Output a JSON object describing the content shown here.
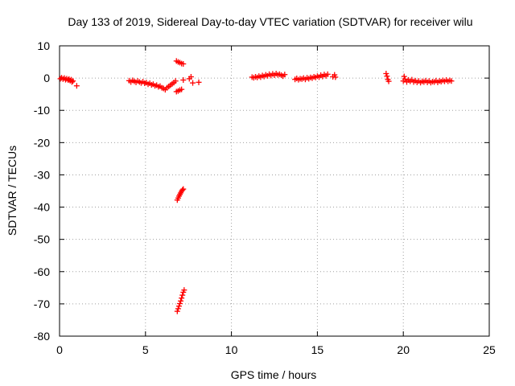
{
  "chart_data": {
    "type": "scatter",
    "title": "Day 133 of 2019, Sidereal Day-to-day VTEC variation (SDTVAR) for receiver wilu",
    "xlabel": "GPS time / hours",
    "ylabel": "SDTVAR / TECUs",
    "xlim": [
      0,
      25
    ],
    "ylim": [
      -80,
      10
    ],
    "xticks": [
      0,
      5,
      10,
      15,
      20,
      25
    ],
    "yticks": [
      10,
      0,
      -10,
      -20,
      -30,
      -40,
      -50,
      -60,
      -70,
      -80
    ],
    "grid": true,
    "marker": "+",
    "color": "#ff0000",
    "series": [
      {
        "name": "SDTVAR",
        "points": [
          [
            0.05,
            -0.2
          ],
          [
            0.12,
            0.1
          ],
          [
            0.2,
            -0.3
          ],
          [
            0.28,
            0.0
          ],
          [
            0.35,
            -0.5
          ],
          [
            0.42,
            -0.2
          ],
          [
            0.5,
            -0.6
          ],
          [
            0.55,
            -0.3
          ],
          [
            0.62,
            -0.8
          ],
          [
            0.68,
            -0.5
          ],
          [
            0.72,
            -1.2
          ],
          [
            0.78,
            -0.9
          ],
          [
            1.0,
            -2.4
          ],
          [
            4.05,
            -0.8
          ],
          [
            4.15,
            -1.2
          ],
          [
            4.25,
            -0.7
          ],
          [
            4.35,
            -1.0
          ],
          [
            4.45,
            -1.3
          ],
          [
            4.55,
            -0.9
          ],
          [
            4.65,
            -1.2
          ],
          [
            4.75,
            -1.5
          ],
          [
            4.85,
            -1.1
          ],
          [
            4.95,
            -1.6
          ],
          [
            5.05,
            -1.4
          ],
          [
            5.15,
            -1.9
          ],
          [
            5.25,
            -1.6
          ],
          [
            5.35,
            -2.1
          ],
          [
            5.45,
            -1.9
          ],
          [
            5.55,
            -2.4
          ],
          [
            5.65,
            -2.2
          ],
          [
            5.75,
            -2.7
          ],
          [
            5.85,
            -2.5
          ],
          [
            5.95,
            -3.0
          ],
          [
            6.05,
            -3.2
          ],
          [
            6.15,
            -3.6
          ],
          [
            6.25,
            -3.0
          ],
          [
            6.35,
            -2.6
          ],
          [
            6.45,
            -2.2
          ],
          [
            6.55,
            -1.8
          ],
          [
            6.65,
            -1.4
          ],
          [
            6.75,
            -0.9
          ],
          [
            6.8,
            -4.2
          ],
          [
            6.9,
            -4.0
          ],
          [
            7.0,
            -3.7
          ],
          [
            7.1,
            -3.5
          ],
          [
            6.8,
            5.3
          ],
          [
            6.9,
            5.0
          ],
          [
            7.0,
            4.8
          ],
          [
            7.1,
            4.5
          ],
          [
            7.2,
            4.4
          ],
          [
            7.2,
            -0.6
          ],
          [
            7.55,
            -0.2
          ],
          [
            7.65,
            0.4
          ],
          [
            7.75,
            -1.5
          ],
          [
            8.1,
            -1.3
          ],
          [
            6.85,
            -37.8
          ],
          [
            6.9,
            -37.2
          ],
          [
            6.95,
            -36.6
          ],
          [
            7.0,
            -36.1
          ],
          [
            7.05,
            -35.6
          ],
          [
            7.1,
            -35.1
          ],
          [
            7.15,
            -34.7
          ],
          [
            7.2,
            -34.4
          ],
          [
            6.85,
            -72.3
          ],
          [
            6.9,
            -71.5
          ],
          [
            6.95,
            -70.7
          ],
          [
            7.0,
            -69.9
          ],
          [
            7.05,
            -69.1
          ],
          [
            7.1,
            -68.2
          ],
          [
            7.15,
            -67.3
          ],
          [
            7.2,
            -66.4
          ],
          [
            7.25,
            -65.7
          ],
          [
            11.2,
            0.3
          ],
          [
            11.3,
            0.1
          ],
          [
            11.4,
            0.4
          ],
          [
            11.5,
            0.2
          ],
          [
            11.6,
            0.6
          ],
          [
            11.7,
            0.3
          ],
          [
            11.8,
            0.8
          ],
          [
            11.9,
            0.5
          ],
          [
            12.0,
            1.0
          ],
          [
            12.1,
            0.7
          ],
          [
            12.2,
            1.2
          ],
          [
            12.3,
            0.8
          ],
          [
            12.4,
            1.3
          ],
          [
            12.5,
            0.9
          ],
          [
            12.6,
            1.4
          ],
          [
            12.7,
            1.0
          ],
          [
            12.8,
            1.2
          ],
          [
            12.9,
            0.9
          ],
          [
            13.0,
            0.6
          ],
          [
            13.1,
            1.1
          ],
          [
            13.7,
            -0.4
          ],
          [
            13.8,
            -0.1
          ],
          [
            13.9,
            -0.5
          ],
          [
            14.0,
            -0.2
          ],
          [
            14.1,
            -0.3
          ],
          [
            14.2,
            0.0
          ],
          [
            14.3,
            -0.4
          ],
          [
            14.4,
            0.1
          ],
          [
            14.5,
            -0.2
          ],
          [
            14.6,
            0.2
          ],
          [
            14.7,
            0.0
          ],
          [
            14.8,
            0.4
          ],
          [
            14.9,
            0.2
          ],
          [
            15.0,
            0.6
          ],
          [
            15.1,
            0.3
          ],
          [
            15.2,
            0.9
          ],
          [
            15.3,
            0.5
          ],
          [
            15.4,
            1.1
          ],
          [
            15.5,
            0.7
          ],
          [
            15.6,
            1.2
          ],
          [
            15.9,
            0.4
          ],
          [
            16.0,
            1.0
          ],
          [
            16.05,
            0.3
          ],
          [
            19.0,
            1.4
          ],
          [
            19.05,
            0.6
          ],
          [
            19.1,
            -0.4
          ],
          [
            19.15,
            -1.0
          ],
          [
            20.0,
            -0.9
          ],
          [
            20.05,
            0.5
          ],
          [
            20.1,
            -0.3
          ],
          [
            20.2,
            -1.2
          ],
          [
            20.3,
            -0.6
          ],
          [
            20.4,
            -1.0
          ],
          [
            20.5,
            -0.5
          ],
          [
            20.6,
            -1.2
          ],
          [
            20.7,
            -0.8
          ],
          [
            20.8,
            -1.3
          ],
          [
            20.9,
            -0.9
          ],
          [
            21.0,
            -1.4
          ],
          [
            21.1,
            -1.0
          ],
          [
            21.2,
            -1.2
          ],
          [
            21.3,
            -0.8
          ],
          [
            21.4,
            -1.3
          ],
          [
            21.5,
            -0.9
          ],
          [
            21.6,
            -1.4
          ],
          [
            21.7,
            -1.1
          ],
          [
            21.8,
            -1.2
          ],
          [
            21.9,
            -0.8
          ],
          [
            22.0,
            -1.3
          ],
          [
            22.1,
            -0.9
          ],
          [
            22.2,
            -1.1
          ],
          [
            22.3,
            -0.7
          ],
          [
            22.4,
            -1.0
          ],
          [
            22.5,
            -0.6
          ],
          [
            22.6,
            -1.0
          ],
          [
            22.7,
            -0.7
          ],
          [
            22.8,
            -0.9
          ]
        ]
      }
    ]
  }
}
